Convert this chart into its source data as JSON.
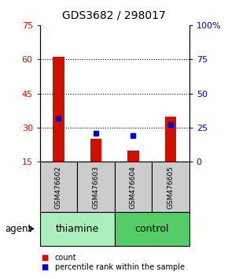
{
  "title": "GDS3682 / 298017",
  "samples": [
    "GSM476602",
    "GSM476603",
    "GSM476604",
    "GSM476605"
  ],
  "count_values": [
    61,
    25,
    20,
    35
  ],
  "percentile_values": [
    32,
    21,
    19,
    27
  ],
  "left_ylim": [
    15,
    75
  ],
  "left_yticks": [
    15,
    30,
    45,
    60,
    75
  ],
  "right_ylim": [
    0,
    100
  ],
  "right_yticks": [
    0,
    25,
    50,
    75,
    100
  ],
  "right_tick_labels": [
    "0",
    "25",
    "50",
    "75",
    "100%"
  ],
  "bar_color": "#cc1100",
  "dot_color": "#0000cc",
  "sample_box_color": "#cccccc",
  "thiamine_color": "#aaeebb",
  "control_color": "#55cc66",
  "left_tick_color": "#cc1100",
  "right_tick_color": "#0000cc",
  "legend_count_color": "#cc1100",
  "legend_pct_color": "#0000cc",
  "xlabel_agent": "agent",
  "bar_width": 0.3,
  "group_spans": [
    {
      "label": "thiamine",
      "start": 0,
      "end": 2
    },
    {
      "label": "control",
      "start": 2,
      "end": 4
    }
  ]
}
